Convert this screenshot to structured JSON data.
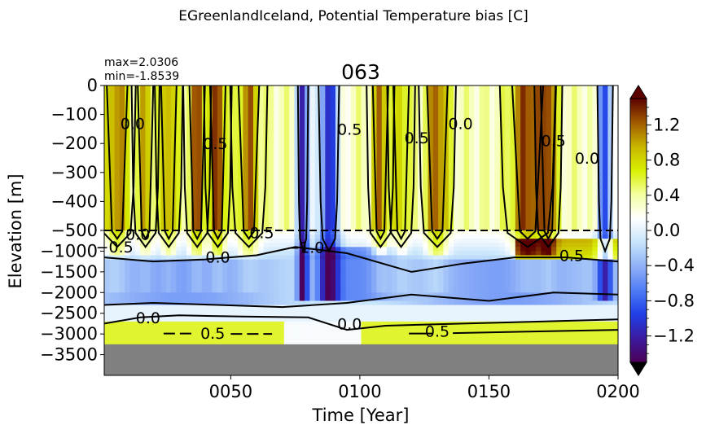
{
  "suptitle": "EGreenlandIceland, Potential Temperature bias [C]",
  "chart_data": {
    "type": "heatmap",
    "title": "063",
    "stats": {
      "max": "max=2.0306",
      "min": "min=-1.8539"
    },
    "xlabel": "Time [Year]",
    "ylabel": "Elevation [m]",
    "xlim": [
      1,
      200
    ],
    "x_ticks": [
      50,
      100,
      150,
      200
    ],
    "x_tick_labels": [
      "0050",
      "0100",
      "0150",
      "0200"
    ],
    "y_upper_ticks": [
      0,
      -100,
      -200,
      -300,
      -400,
      -500
    ],
    "y_lower_ticks": [
      -1000,
      -1500,
      -2000,
      -2500,
      -3000,
      -3500
    ],
    "y_upper_range": [
      0,
      -500
    ],
    "y_lower_range": [
      -500,
      -4000
    ],
    "seafloor_depth": -3250,
    "split_depth": -500,
    "colorbar": {
      "range": [
        -1.5,
        1.5
      ],
      "ticks": [
        -1.2,
        -0.8,
        -0.4,
        0.0,
        0.4,
        0.8,
        1.2
      ],
      "tick_labels": [
        "−1.2",
        "−0.8",
        "−0.4",
        "0.0",
        "0.4",
        "0.8",
        "1.2"
      ],
      "extend": "both",
      "stops": [
        "#4b0055",
        "#3c1aa0",
        "#1f3fe6",
        "#4f7cf6",
        "#8fb0f7",
        "#c6e4fb",
        "#ffffff",
        "#f4ffa0",
        "#d8f000",
        "#c8b400",
        "#a05a00",
        "#5c0000"
      ]
    },
    "contour_labels": [
      {
        "text": "0.0",
        "x": 12,
        "d": -130
      },
      {
        "text": "0.5",
        "x": 44,
        "d": -200
      },
      {
        "text": "0.5",
        "x": 62,
        "d": -550
      },
      {
        "text": "0.0",
        "x": 14,
        "d": -590
      },
      {
        "text": "-0.5",
        "x": 5,
        "d": -890
      },
      {
        "text": "0.0",
        "x": 45,
        "d": -1140
      },
      {
        "text": "-1.0",
        "x": 79,
        "d": -900
      },
      {
        "text": "0.5",
        "x": 96,
        "d": -150
      },
      {
        "text": "0.5",
        "x": 122,
        "d": -180
      },
      {
        "text": "0.0",
        "x": 139,
        "d": -130
      },
      {
        "text": "0.5",
        "x": 175,
        "d": -190
      },
      {
        "text": "0.0",
        "x": 188,
        "d": -250
      },
      {
        "text": "0.5",
        "x": 182,
        "d": -1100
      },
      {
        "text": "0.0",
        "x": 18,
        "d": -2600
      },
      {
        "text": "0.5",
        "x": 43,
        "d": -2980
      },
      {
        "text": "0.0",
        "x": 96,
        "d": -2750
      },
      {
        "text": "0.5",
        "x": 130,
        "d": -2930
      }
    ],
    "warm_columns": [
      {
        "x": 6,
        "w": 4,
        "v": 1.1
      },
      {
        "x": 17,
        "w": 3,
        "v": 0.9
      },
      {
        "x": 26,
        "w": 3,
        "v": 1.0
      },
      {
        "x": 37,
        "w": 3,
        "v": 1.2
      },
      {
        "x": 45,
        "w": 3,
        "v": 1.3
      },
      {
        "x": 57,
        "w": 4,
        "v": 1.1
      },
      {
        "x": 108,
        "w": 3,
        "v": 1.1
      },
      {
        "x": 116,
        "w": 3,
        "v": 0.8
      },
      {
        "x": 130,
        "w": 4,
        "v": 1.2
      },
      {
        "x": 165,
        "w": 6,
        "v": 1.3
      },
      {
        "x": 173,
        "w": 3,
        "v": 1.2
      }
    ],
    "cold_columns": [
      {
        "x": 78,
        "w": 2,
        "v": -1.4
      },
      {
        "x": 88,
        "w": 4,
        "v": -1.1
      },
      {
        "x": 195,
        "w": 3,
        "v": -0.9
      }
    ]
  }
}
